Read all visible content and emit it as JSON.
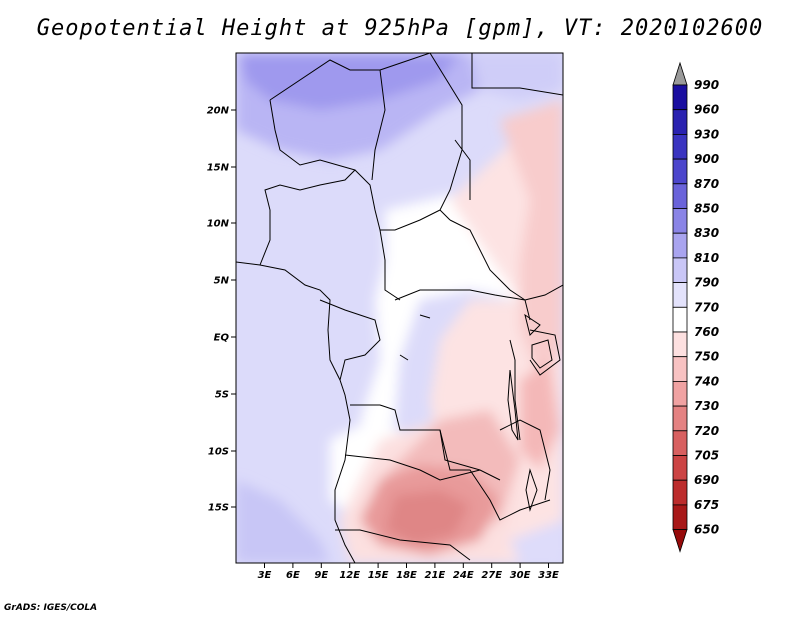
{
  "title": "Geopotential Height at 925hPa [gpm], VT: 2020102600",
  "credit": "GrADS: IGES/COLA",
  "map": {
    "lat_ticks": [
      "20N",
      "15N",
      "10N",
      "5N",
      "EQ",
      "5S",
      "10S",
      "15S"
    ],
    "lon_ticks": [
      "3E",
      "6E",
      "9E",
      "12E",
      "15E",
      "18E",
      "21E",
      "24E",
      "27E",
      "30E",
      "33E"
    ]
  },
  "colorbar": {
    "levels": [
      "990",
      "960",
      "930",
      "900",
      "870",
      "850",
      "830",
      "810",
      "790",
      "770",
      "760",
      "750",
      "740",
      "730",
      "720",
      "705",
      "690",
      "675",
      "650"
    ],
    "colors": [
      "#9a9a9a",
      "#1a0ea0",
      "#2a22b0",
      "#3a34c0",
      "#4c46cc",
      "#6a63da",
      "#8a84e6",
      "#a9a4ef",
      "#c9c6f6",
      "#e3e2fb",
      "#ffffff",
      "#fde0e0",
      "#f8c2c2",
      "#f0a2a2",
      "#e48282",
      "#d86060",
      "#cc4444",
      "#bc2c2c",
      "#a81818",
      "#960a0a"
    ]
  }
}
